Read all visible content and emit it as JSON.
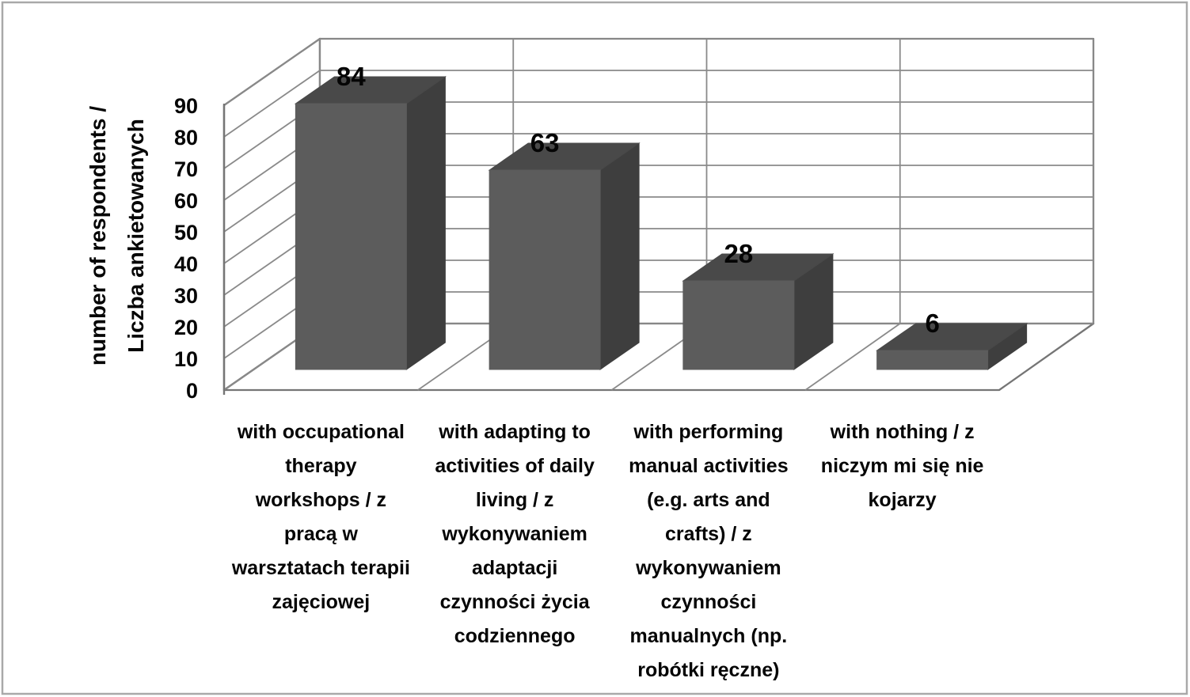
{
  "figure": {
    "background": "#ffffff",
    "border_color": "#a9a9a9"
  },
  "chart_data": {
    "type": "bar",
    "projection": "3d",
    "title": "",
    "xlabel": "",
    "ylabel_lines": [
      "number of respondents /",
      "Liczba ankietowanych"
    ],
    "ylim": [
      0,
      90
    ],
    "ytick_step": 10,
    "yticks": [
      0,
      10,
      20,
      30,
      40,
      50,
      60,
      70,
      80,
      90
    ],
    "grid": true,
    "legend": false,
    "categories": [
      "with occupational therapy workshops / z pracą w warsztatach terapii zajęciowej",
      "with adapting to activities of daily living / z wykonywaniem adaptacji czynności życia codziennego",
      "with performing manual activities (e.g. arts and crafts) / z wykonywaniem czynności manualnych (np. robótki ręczne)",
      "with nothing / z niczym mi się nie kojarzy"
    ],
    "categories_lines": [
      [
        "with occupational",
        "therapy",
        "workshops / z",
        "pracą w",
        "warsztatach terapii",
        "zajęciowej"
      ],
      [
        "with adapting to",
        "activities of daily",
        "living / z",
        "wykonywaniem",
        "adaptacji",
        "czynności życia",
        "codziennego"
      ],
      [
        "with performing",
        "manual activities",
        "(e.g. arts and",
        "crafts) / z",
        "wykonywaniem",
        "czynności",
        "manualnych (np.",
        "robótki ręczne)"
      ],
      [
        "with nothing / z",
        "niczym mi się nie",
        "kojarzy"
      ]
    ],
    "values": [
      84,
      63,
      28,
      6
    ],
    "value_labels": [
      "84",
      "63",
      "28",
      "6"
    ],
    "colors": {
      "bar_front": "#5c5c5c",
      "bar_top": "#494949",
      "bar_side": "#3e3e3e",
      "gridline": "#8a8a8a",
      "wall_edge": "#757575",
      "wall_fill": "#ffffff",
      "text": "#050505"
    }
  }
}
